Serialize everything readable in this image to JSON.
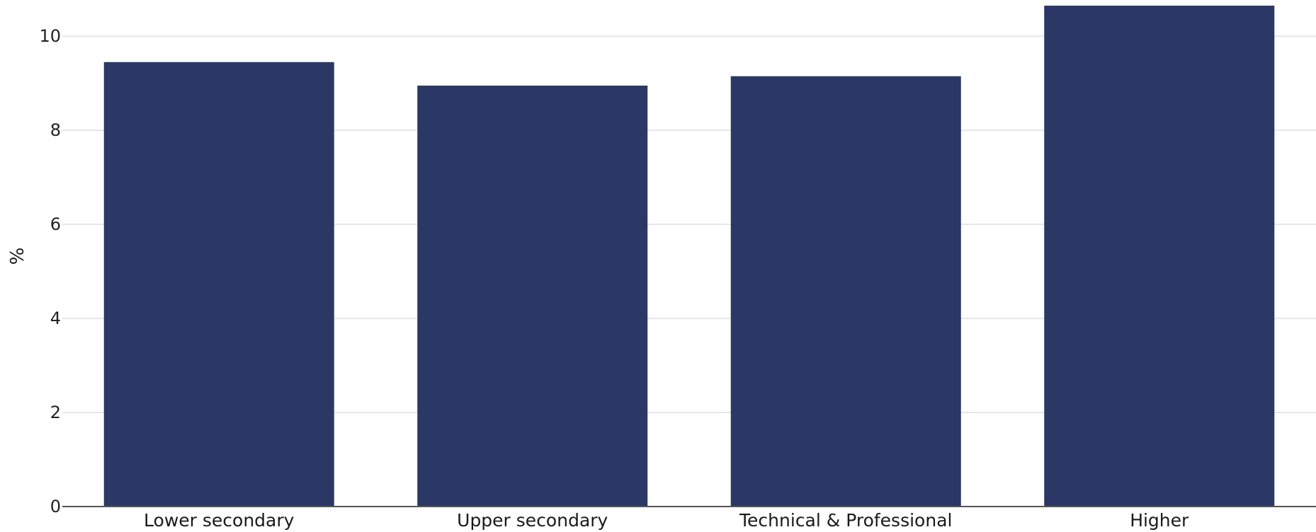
{
  "chart_data": {
    "type": "bar",
    "categories": [
      "Lower secondary",
      "Upper secondary",
      "Technical & Professional",
      "Higher"
    ],
    "values": [
      9.45,
      8.95,
      9.15,
      10.65
    ],
    "title": "",
    "xlabel": "",
    "ylabel": "%",
    "ylim": [
      0,
      10.65
    ],
    "yticks": [
      0,
      2,
      4,
      6,
      8,
      10
    ],
    "grid": true,
    "legend": "none",
    "colors": {
      "bar": "#2b3865",
      "grid": "#e6e6e6",
      "axis": "#555555"
    }
  }
}
